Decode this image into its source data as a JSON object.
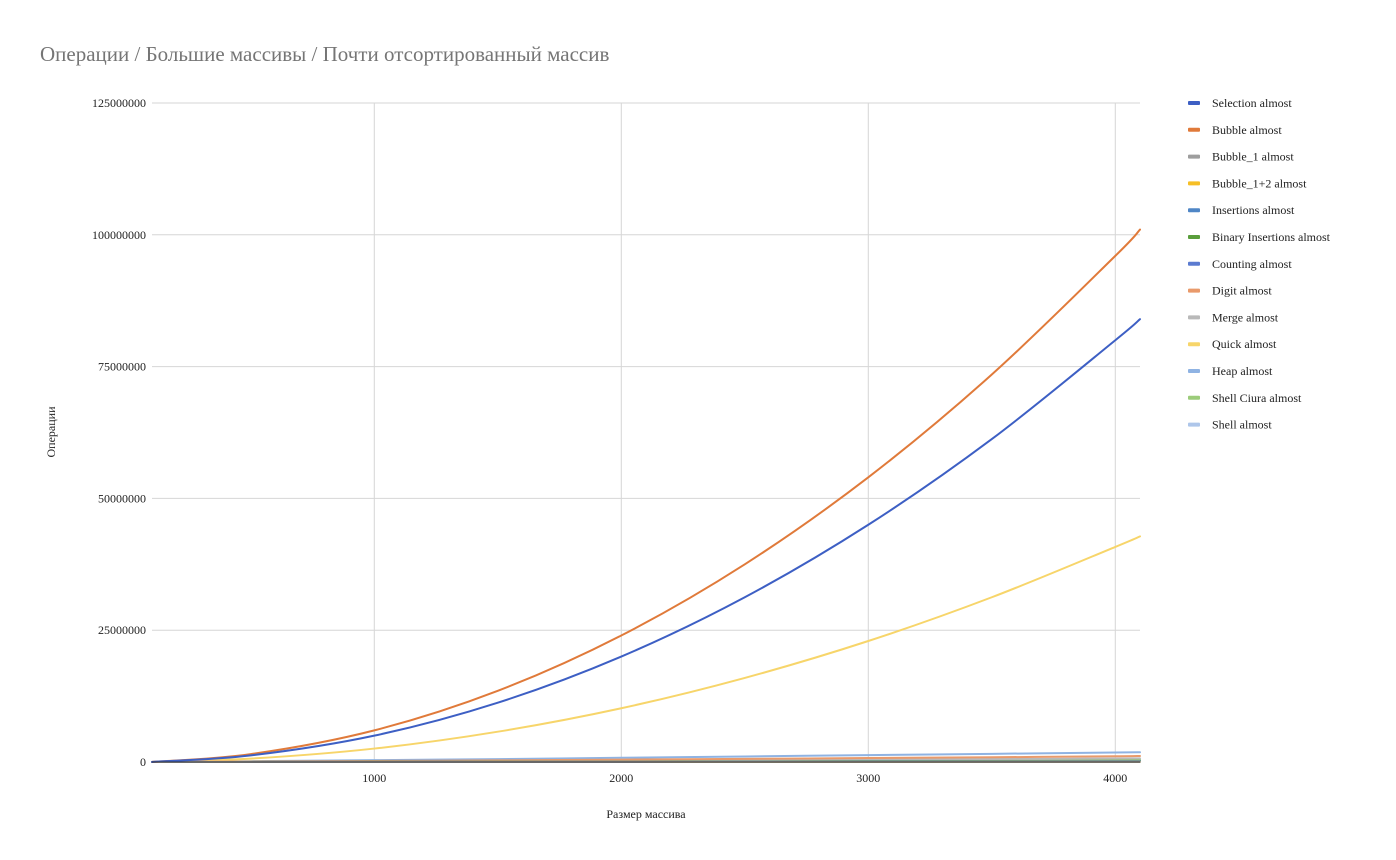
{
  "chart_data": {
    "type": "line",
    "title": "Операции / Большие массивы / Почти отсортированный массив",
    "xlabel": "Размер массива",
    "ylabel": "Операции",
    "xlim": [
      100,
      4100
    ],
    "ylim": [
      0,
      125000000
    ],
    "x_ticks": [
      1000,
      2000,
      3000,
      4000
    ],
    "y_ticks": [
      0,
      25000000,
      50000000,
      75000000,
      100000000,
      125000000
    ],
    "grid": true,
    "legend_position": "right",
    "x": [
      100,
      500,
      1000,
      1500,
      2000,
      2500,
      3000,
      3500,
      4000,
      4100
    ],
    "series": [
      {
        "name": "Selection almost",
        "color": "#3d5fc4",
        "values": [
          5000,
          1250000,
          5000000,
          11250000,
          20000000,
          31250000,
          45000000,
          61250000,
          80000000,
          84000000
        ]
      },
      {
        "name": "Bubble almost",
        "color": "#e07a3a",
        "values": [
          6000,
          1500000,
          6000000,
          13500000,
          24000000,
          37500000,
          54000000,
          73500000,
          96000000,
          101000000
        ]
      },
      {
        "name": "Bubble_1 almost",
        "color": "#9e9e9e",
        "values": [
          100,
          2000,
          5000,
          8000,
          12000,
          15000,
          19000,
          23000,
          27000,
          28000
        ]
      },
      {
        "name": "Bubble_1+2 almost",
        "color": "#f6bf26",
        "values": [
          200,
          3000,
          8000,
          14000,
          20000,
          26000,
          32000,
          38000,
          45000,
          46000
        ]
      },
      {
        "name": "Insertions almost",
        "color": "#4f86c6",
        "values": [
          500,
          12000,
          30000,
          50000,
          70000,
          92000,
          115000,
          140000,
          165000,
          170000
        ]
      },
      {
        "name": "Binary Insertions almost",
        "color": "#5a9e3c",
        "values": [
          800,
          15000,
          40000,
          65000,
          95000,
          125000,
          155000,
          185000,
          215000,
          220000
        ]
      },
      {
        "name": "Counting almost",
        "color": "#5b7bd0",
        "values": [
          600,
          10000,
          25000,
          40000,
          55000,
          70000,
          85000,
          100000,
          115000,
          118000
        ]
      },
      {
        "name": "Digit almost",
        "color": "#e99a6b",
        "values": [
          20000,
          100000,
          200000,
          300000,
          450000,
          600000,
          750000,
          900000,
          1100000,
          1150000
        ]
      },
      {
        "name": "Merge almost",
        "color": "#b9b9b9",
        "values": [
          5000,
          50000,
          130000,
          210000,
          300000,
          390000,
          480000,
          570000,
          660000,
          680000
        ]
      },
      {
        "name": "Quick almost",
        "color": "#f7d56a",
        "values": [
          2500,
          640000,
          2550000,
          5750000,
          10200000,
          15950000,
          22950000,
          31250000,
          40800000,
          42800000
        ]
      },
      {
        "name": "Heap almost",
        "color": "#8fb3e3",
        "values": [
          20000,
          150000,
          350000,
          550000,
          800000,
          1050000,
          1300000,
          1550000,
          1800000,
          1850000
        ]
      },
      {
        "name": "Shell Ciura almost",
        "color": "#9ccc7a",
        "values": [
          1500,
          25000,
          65000,
          110000,
          160000,
          210000,
          260000,
          310000,
          360000,
          370000
        ]
      },
      {
        "name": "Shell almost",
        "color": "#aec6ea",
        "values": [
          2000,
          30000,
          80000,
          135000,
          190000,
          250000,
          310000,
          370000,
          430000,
          440000
        ]
      }
    ]
  }
}
